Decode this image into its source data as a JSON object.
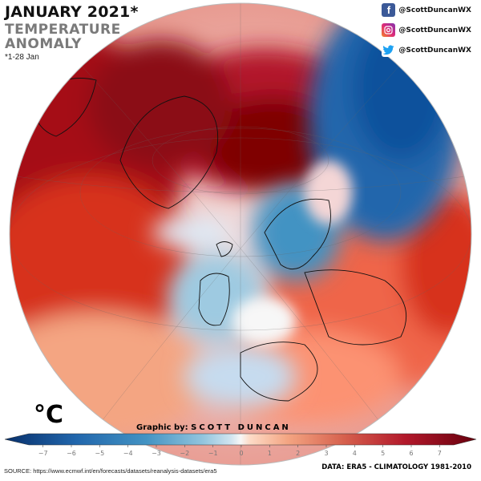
{
  "header": {
    "title": "JANUARY 2021*",
    "subtitle_line1": "TEMPERATURE",
    "subtitle_line2": "ANOMALY",
    "note": "*1-28 Jan"
  },
  "social": {
    "facebook": {
      "icon": "facebook-icon",
      "handle": "@ScottDuncanWX",
      "color": "#3b5998"
    },
    "instagram": {
      "icon": "instagram-icon",
      "handle": "@ScottDuncanWX",
      "color": "#c13584"
    },
    "twitter": {
      "icon": "twitter-icon",
      "handle": "@ScottDuncanWX",
      "color": "#1da1f2"
    }
  },
  "legend": {
    "unit": "°C",
    "ticks": [
      "−7",
      "−6",
      "−5",
      "−4",
      "−3",
      "−2",
      "−1",
      "0",
      "1",
      "2",
      "3",
      "4",
      "5",
      "6",
      "7"
    ],
    "cold_color": "#08306b",
    "neutral_color": "#f7f7f7",
    "warm_color": "#67000d"
  },
  "credit": {
    "prefix": "Graphic by:",
    "name": "SCOTT DUNCAN"
  },
  "footer": {
    "source": "SOURCE: https://www.ecmwf.int/en/forecasts/datasets/reanalysis-datasets/era5",
    "data": "DATA: ERA5 - CLIMATOLOGY 1981-2010"
  }
}
